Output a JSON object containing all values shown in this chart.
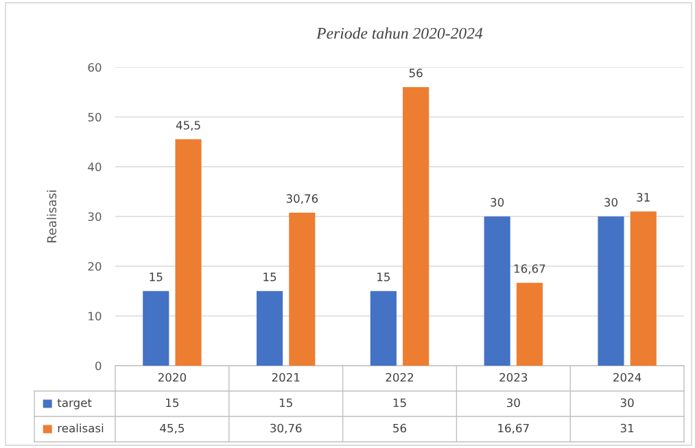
{
  "chart_data": {
    "type": "bar",
    "title": "Periode tahun 2020-2024",
    "ylabel": "Realisasi",
    "categories": [
      "2020",
      "2021",
      "2022",
      "2023",
      "2024"
    ],
    "series": [
      {
        "name": "target",
        "color": "#4472c4",
        "values": [
          15,
          15,
          15,
          30,
          30
        ],
        "value_labels": [
          "15",
          "15",
          "15",
          "30",
          "30"
        ]
      },
      {
        "name": "realisasi",
        "color": "#ed7d31",
        "values": [
          45.5,
          30.76,
          56,
          16.67,
          31
        ],
        "value_labels": [
          "45,5",
          "30,76",
          "56",
          "16,67",
          "31"
        ]
      }
    ],
    "ylim": [
      0,
      60
    ],
    "yticks": [
      0,
      10,
      20,
      30,
      40,
      50,
      60
    ],
    "grid": "y",
    "legend": "bottom"
  }
}
